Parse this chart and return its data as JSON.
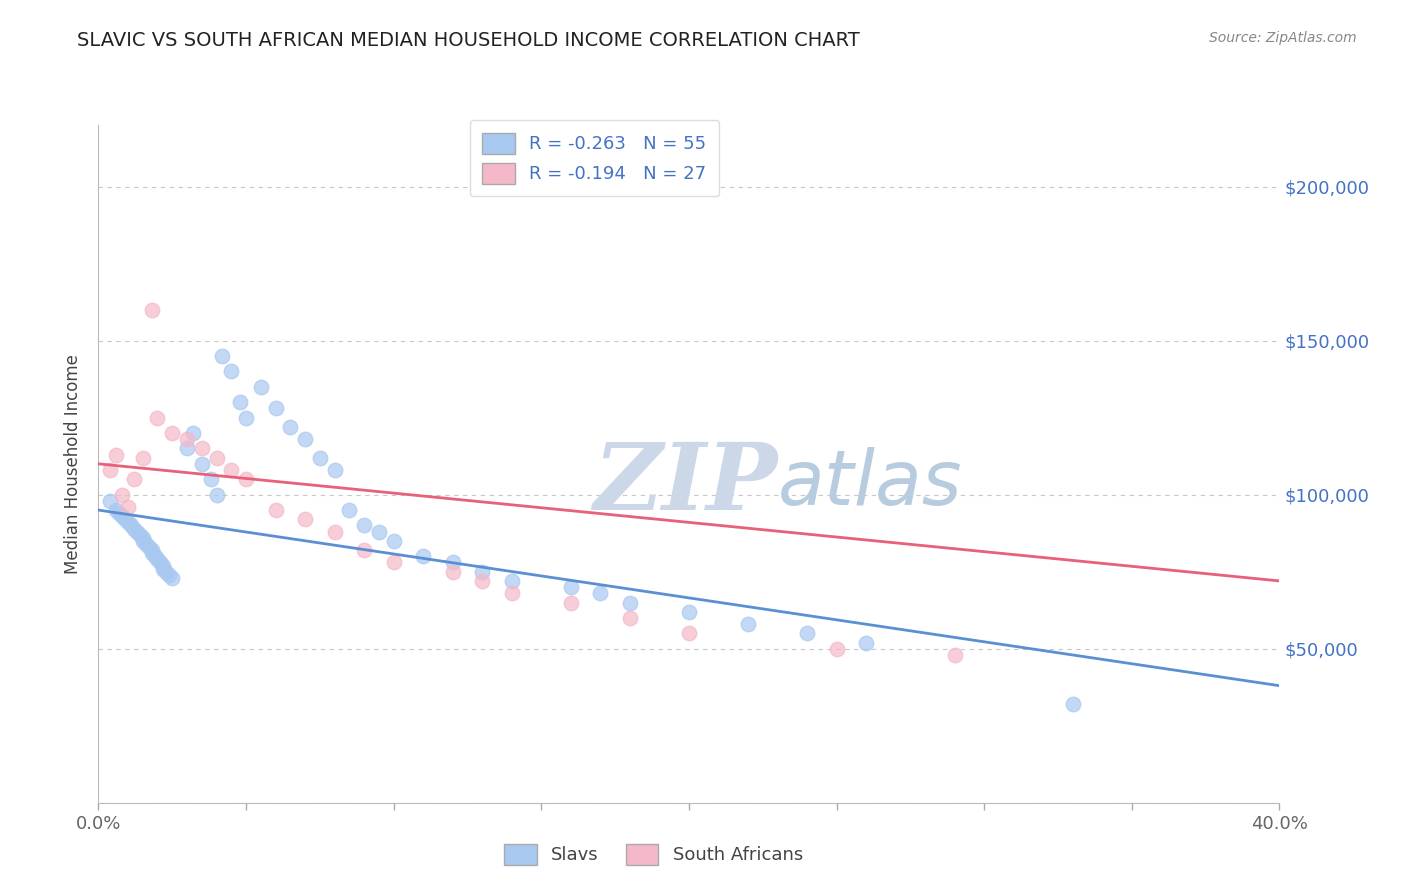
{
  "title": "SLAVIC VS SOUTH AFRICAN MEDIAN HOUSEHOLD INCOME CORRELATION CHART",
  "source": "Source: ZipAtlas.com",
  "ylabel": "Median Household Income",
  "xlim": [
    0.0,
    0.4
  ],
  "ylim": [
    0,
    220000
  ],
  "yticks": [
    0,
    50000,
    100000,
    150000,
    200000
  ],
  "ytick_labels": [
    "",
    "$50,000",
    "$100,000",
    "$150,000",
    "$200,000"
  ],
  "xticks": [
    0.0,
    0.05,
    0.1,
    0.15,
    0.2,
    0.25,
    0.3,
    0.35,
    0.4
  ],
  "slavs_R": "-0.263",
  "slavs_N": "55",
  "southafrican_R": "-0.194",
  "southafrican_N": "27",
  "slavs_color": "#a8c8f0",
  "southafrican_color": "#f4b8c8",
  "slavs_line_color": "#5b8fd4",
  "southafrican_line_color": "#e8607a",
  "background_color": "#ffffff",
  "grid_color": "#c8c8c8",
  "watermark_zip": "ZIP",
  "watermark_atlas": "atlas",
  "watermark_color_zip": "#ccd8e8",
  "watermark_color_atlas": "#b8cce0",
  "label_color": "#4472c4",
  "title_color": "#222222",
  "source_color": "#888888",
  "slavs_x": [
    0.004,
    0.006,
    0.007,
    0.008,
    0.009,
    0.01,
    0.011,
    0.012,
    0.013,
    0.014,
    0.015,
    0.015,
    0.016,
    0.017,
    0.018,
    0.018,
    0.019,
    0.02,
    0.021,
    0.022,
    0.022,
    0.023,
    0.024,
    0.025,
    0.03,
    0.032,
    0.035,
    0.038,
    0.04,
    0.042,
    0.045,
    0.048,
    0.05,
    0.055,
    0.06,
    0.065,
    0.07,
    0.075,
    0.08,
    0.085,
    0.09,
    0.095,
    0.1,
    0.11,
    0.12,
    0.13,
    0.14,
    0.16,
    0.17,
    0.18,
    0.2,
    0.22,
    0.24,
    0.26,
    0.33
  ],
  "slavs_y": [
    98000,
    95000,
    94000,
    93000,
    92000,
    91000,
    90000,
    89000,
    88000,
    87000,
    86000,
    85000,
    84000,
    83000,
    82000,
    81000,
    80000,
    79000,
    78000,
    77000,
    76000,
    75000,
    74000,
    73000,
    115000,
    120000,
    110000,
    105000,
    100000,
    145000,
    140000,
    130000,
    125000,
    135000,
    128000,
    122000,
    118000,
    112000,
    108000,
    95000,
    90000,
    88000,
    85000,
    80000,
    78000,
    75000,
    72000,
    70000,
    68000,
    65000,
    62000,
    58000,
    55000,
    52000,
    32000
  ],
  "sa_x": [
    0.004,
    0.006,
    0.008,
    0.01,
    0.012,
    0.015,
    0.018,
    0.02,
    0.025,
    0.03,
    0.035,
    0.04,
    0.045,
    0.05,
    0.06,
    0.07,
    0.08,
    0.09,
    0.1,
    0.12,
    0.13,
    0.14,
    0.16,
    0.18,
    0.2,
    0.25,
    0.29
  ],
  "sa_y": [
    108000,
    113000,
    100000,
    96000,
    105000,
    112000,
    160000,
    125000,
    120000,
    118000,
    115000,
    112000,
    108000,
    105000,
    95000,
    92000,
    88000,
    82000,
    78000,
    75000,
    72000,
    68000,
    65000,
    60000,
    55000,
    50000,
    48000
  ],
  "slavs_line_x": [
    0.0,
    0.4
  ],
  "slavs_line_y": [
    95000,
    38000
  ],
  "sa_line_x": [
    0.0,
    0.4
  ],
  "sa_line_y": [
    110000,
    72000
  ]
}
